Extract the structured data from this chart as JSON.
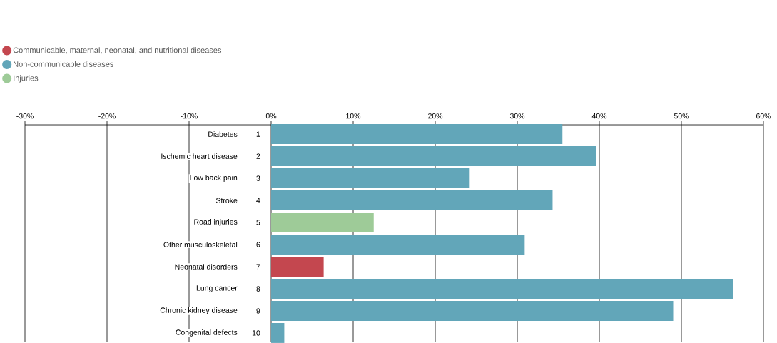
{
  "chart_data": {
    "type": "bar",
    "orientation": "horizontal",
    "categories": [
      "Diabetes",
      "Ischemic heart disease",
      "Low back pain",
      "Stroke",
      "Road injuries",
      "Other musculoskeletal",
      "Neonatal disorders",
      "Lung cancer",
      "Chronic kidney disease",
      "Congenital defects"
    ],
    "series": [
      {
        "name": "Communicable, maternal, neonatal, and nutritional diseases",
        "color": "#c4474f",
        "values": [
          null,
          null,
          null,
          null,
          null,
          null,
          6.4,
          null,
          null,
          null
        ]
      },
      {
        "name": "Non-communicable diseases",
        "color": "#62a6b9",
        "values": [
          35.5,
          39.6,
          24.2,
          34.3,
          null,
          30.9,
          null,
          56.3,
          49.0,
          1.6
        ]
      },
      {
        "name": "Injuries",
        "color": "#9ecb98",
        "values": [
          null,
          null,
          null,
          null,
          12.5,
          null,
          null,
          null,
          null,
          null
        ]
      }
    ],
    "annotations": [
      "1",
      "2",
      "3",
      "4",
      "5",
      "6",
      "7",
      "8",
      "9",
      "10"
    ],
    "xlim": [
      -30,
      60
    ],
    "xticks": [
      {
        "value": -30,
        "label": "-30%"
      },
      {
        "value": -20,
        "label": "-20%"
      },
      {
        "value": -10,
        "label": "-10%"
      },
      {
        "value": 0,
        "label": "0%"
      },
      {
        "value": 10,
        "label": "10%"
      },
      {
        "value": 20,
        "label": "20%"
      },
      {
        "value": 30,
        "label": "30%"
      },
      {
        "value": 40,
        "label": "40%"
      },
      {
        "value": 50,
        "label": "50%"
      },
      {
        "value": 60,
        "label": "60%"
      }
    ],
    "grid": "x",
    "legend": "top left"
  }
}
